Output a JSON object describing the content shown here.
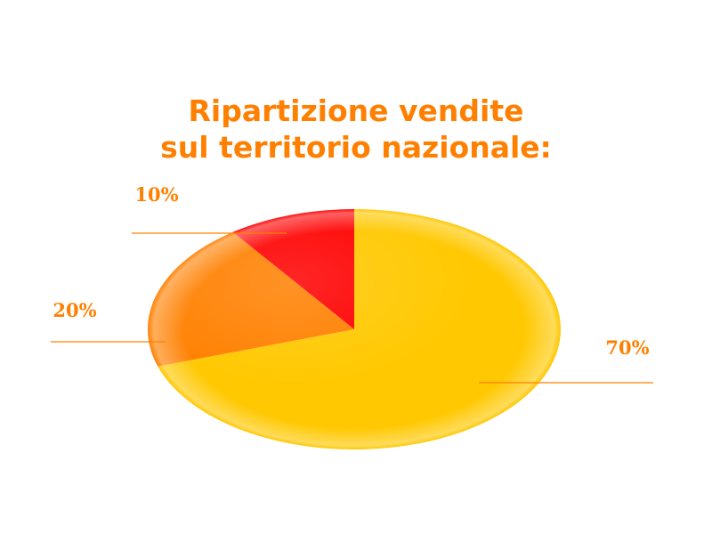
{
  "chart_data": {
    "type": "pie",
    "title_lines": [
      "Ripartizione vendite",
      "sul territorio nazionale:"
    ],
    "slices": [
      {
        "value": 70,
        "label": "70%",
        "color": "#ffc800"
      },
      {
        "value": 20,
        "label": "20%",
        "color": "#ff8000"
      },
      {
        "value": 10,
        "label": "10%",
        "color": "#ff0000"
      }
    ],
    "label_color": "#ff8000",
    "legend": "none"
  }
}
